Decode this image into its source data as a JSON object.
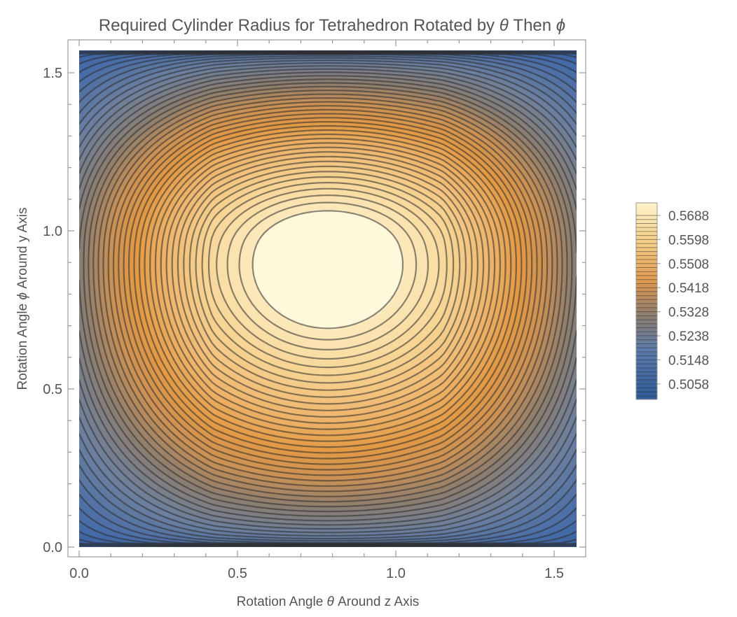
{
  "chart_data": {
    "type": "contour",
    "title_parts": [
      "Required Cylinder Radius for Tetrahedron Rotated by ",
      "θ",
      " Then ",
      "ϕ"
    ],
    "xlabel_parts": [
      "Rotation Angle ",
      "θ",
      " Around z Axis"
    ],
    "ylabel_parts": [
      "Rotation Angle ",
      "ϕ",
      " Around y Axis"
    ],
    "xlim": [
      0,
      1.5708
    ],
    "ylim": [
      0,
      1.5708
    ],
    "x_ticks": [
      {
        "value": 0.0,
        "label": "0.0"
      },
      {
        "value": 0.5,
        "label": "0.5"
      },
      {
        "value": 1.0,
        "label": "1.0"
      },
      {
        "value": 1.5,
        "label": "1.5"
      }
    ],
    "y_ticks": [
      {
        "value": 0.0,
        "label": "0.0"
      },
      {
        "value": 0.5,
        "label": "0.5"
      },
      {
        "value": 1.0,
        "label": "1.0"
      },
      {
        "value": 1.5,
        "label": "1.5"
      }
    ],
    "z_range": [
      0.5,
      0.5735
    ],
    "maximum": {
      "x": 0.785,
      "y": 0.955,
      "value": 0.5735
    },
    "legend": {
      "placement": "right",
      "labels": [
        {
          "value": 0.5688,
          "label": "0.5688"
        },
        {
          "value": 0.5598,
          "label": "0.5598"
        },
        {
          "value": 0.5508,
          "label": "0.5508"
        },
        {
          "value": 0.5418,
          "label": "0.5418"
        },
        {
          "value": 0.5328,
          "label": "0.5328"
        },
        {
          "value": 0.5238,
          "label": "0.5238"
        },
        {
          "value": 0.5148,
          "label": "0.5148"
        },
        {
          "value": 0.5058,
          "label": "0.5058"
        }
      ]
    },
    "contour_levels": [
      0.5013,
      0.5028,
      0.5043,
      0.5058,
      0.5073,
      0.5088,
      0.5103,
      0.5118,
      0.5133,
      0.5148,
      0.5163,
      0.5178,
      0.5193,
      0.5208,
      0.5223,
      0.5238,
      0.5253,
      0.5268,
      0.5283,
      0.5298,
      0.5313,
      0.5328,
      0.5343,
      0.5358,
      0.5373,
      0.5388,
      0.5403,
      0.5418,
      0.5433,
      0.5448,
      0.5463,
      0.5478,
      0.5493,
      0.5508,
      0.5523,
      0.5538,
      0.5553,
      0.5568,
      0.5583,
      0.5598,
      0.5613,
      0.5628,
      0.5643,
      0.5658,
      0.5673,
      0.5688
    ],
    "colors": {
      "low": "#2f5a9a",
      "mid_blue": "#4a6fa5",
      "mid_gray": "#8b7d70",
      "mid": "#e39a45",
      "high": "#fdf1c8",
      "max": "#fff9dc"
    }
  }
}
